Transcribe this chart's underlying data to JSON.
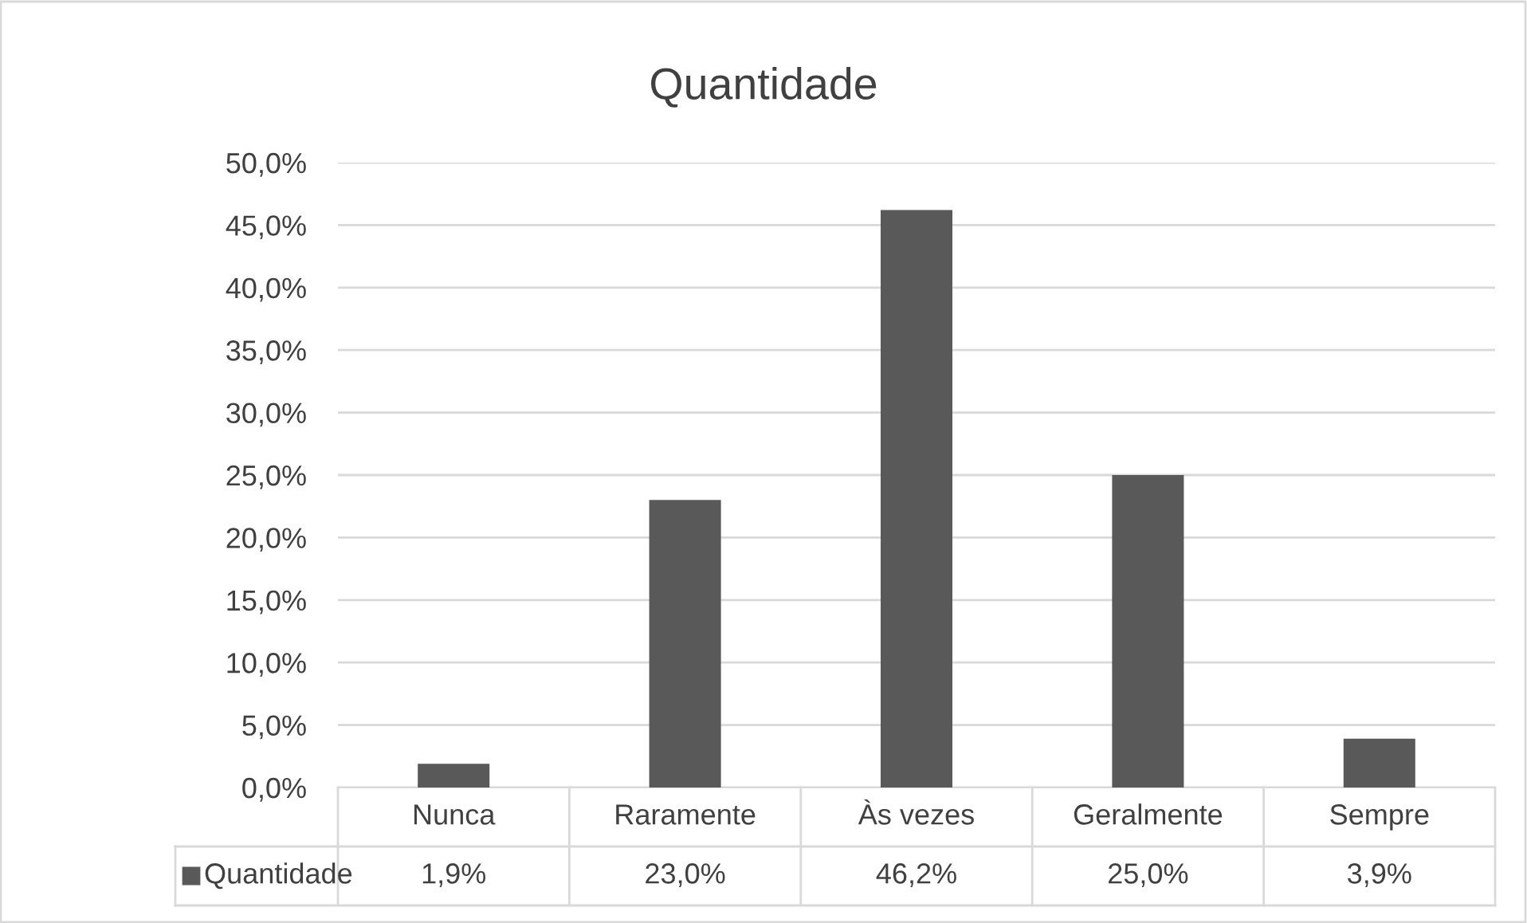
{
  "chart_data": {
    "type": "bar",
    "title": "Quantidade",
    "categories": [
      "Nunca",
      "Raramente",
      "Às vezes",
      "Geralmente",
      "Sempre"
    ],
    "series": [
      {
        "name": "Quantidade",
        "color": "#595959",
        "values": [
          1.9,
          23.0,
          46.2,
          25.0,
          3.9
        ],
        "value_labels": [
          "1,9%",
          "23,0%",
          "46,2%",
          "25,0%",
          "3,9%"
        ]
      }
    ],
    "ylim": [
      0,
      50
    ],
    "yticks": [
      {
        "value": 0,
        "label": "0,0%"
      },
      {
        "value": 5,
        "label": "5,0%"
      },
      {
        "value": 10,
        "label": "10,0%"
      },
      {
        "value": 15,
        "label": "15,0%"
      },
      {
        "value": 20,
        "label": "20,0%"
      },
      {
        "value": 25,
        "label": "25,0%"
      },
      {
        "value": 30,
        "label": "30,0%"
      },
      {
        "value": 35,
        "label": "35,0%"
      },
      {
        "value": 40,
        "label": "40,0%"
      },
      {
        "value": 45,
        "label": "45,0%"
      },
      {
        "value": 50,
        "label": "50,0%"
      }
    ],
    "grid": "y",
    "legend": "bottom"
  }
}
